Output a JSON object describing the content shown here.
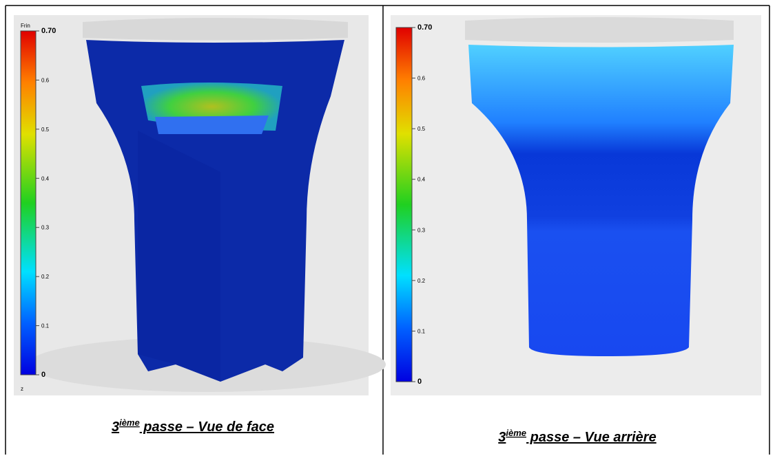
{
  "panels": [
    {
      "legend_title": "Frin",
      "ticks": [
        "0.70",
        "0.6",
        "0.5",
        "0.4",
        "0.3",
        "0.2",
        "0.1",
        "0"
      ],
      "axis_letter": "z",
      "caption": {
        "number": "3",
        "superscript": "ième",
        "text": " passe – Vue de face"
      }
    },
    {
      "ticks": [
        "0.70",
        "0.6",
        "0.5",
        "0.4",
        "0.3",
        "0.2",
        "0.1",
        "0"
      ],
      "caption": {
        "number": "3",
        "superscript": "ième",
        "text": " passe – Vue arrière"
      }
    }
  ]
}
